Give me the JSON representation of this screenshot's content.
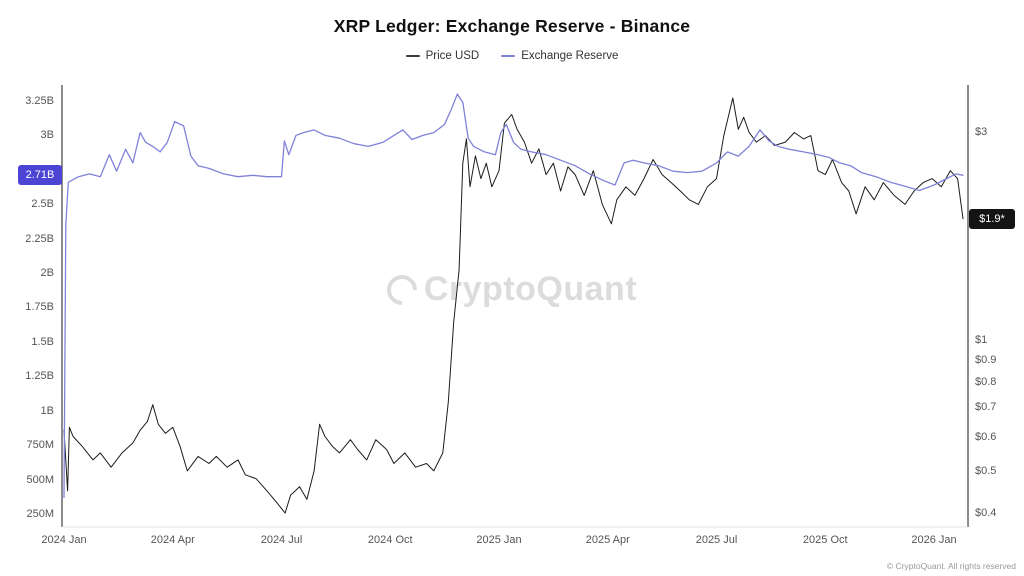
{
  "title": "XRP Ledger: Exchange Reserve - Binance",
  "legend": {
    "items": [
      {
        "label": "Price USD",
        "color": "#3a3a3a"
      },
      {
        "label": "Exchange Reserve",
        "color": "#8082d9"
      }
    ]
  },
  "watermark": {
    "text": "CryptoQuant"
  },
  "footer": {
    "text": "© CryptoQuant. All rights reserved"
  },
  "badges": {
    "left": {
      "label": "2.71B",
      "value": 2.71,
      "color": "#4b44d4"
    },
    "right": {
      "label": "$1.9*",
      "value": 1.9,
      "color": "#141414"
    }
  },
  "chart_data": {
    "type": "line",
    "title": "XRP Ledger: Exchange Reserve - Binance",
    "x_unit": "months_since_2024_01",
    "x_ticks": [
      {
        "m": 0,
        "label": "2024 Jan"
      },
      {
        "m": 3,
        "label": "2024 Apr"
      },
      {
        "m": 6,
        "label": "2024 Jul"
      },
      {
        "m": 9,
        "label": "2024 Oct"
      },
      {
        "m": 12,
        "label": "2025 Jan"
      },
      {
        "m": 15,
        "label": "2025 Apr"
      },
      {
        "m": 18,
        "label": "2025 Jul"
      },
      {
        "m": 21,
        "label": "2025 Oct"
      },
      {
        "m": 24,
        "label": "2026 Jan"
      }
    ],
    "left_axis": {
      "scale": "linear",
      "unit": "XRP (B = billions, M = millions)",
      "range": [
        0.15,
        3.37
      ],
      "ticks": [
        {
          "v": 3.25,
          "label": "3.25B"
        },
        {
          "v": 3.0,
          "label": "3B"
        },
        {
          "v": 2.5,
          "label": "2.5B"
        },
        {
          "v": 2.25,
          "label": "2.25B"
        },
        {
          "v": 2.0,
          "label": "2B"
        },
        {
          "v": 1.75,
          "label": "1.75B"
        },
        {
          "v": 1.5,
          "label": "1.5B"
        },
        {
          "v": 1.25,
          "label": "1.25B"
        },
        {
          "v": 1.0,
          "label": "1B"
        },
        {
          "v": 0.75,
          "label": "750M"
        },
        {
          "v": 0.5,
          "label": "500M"
        },
        {
          "v": 0.25,
          "label": "250M"
        }
      ]
    },
    "right_axis": {
      "scale": "log",
      "unit": "USD",
      "range": [
        0.37,
        3.8
      ],
      "ticks": [
        {
          "v": 3.0,
          "label": "$3"
        },
        {
          "v": 1.0,
          "label": "$1"
        },
        {
          "v": 0.9,
          "label": "$0.9"
        },
        {
          "v": 0.8,
          "label": "$0.8"
        },
        {
          "v": 0.7,
          "label": "$0.7"
        },
        {
          "v": 0.6,
          "label": "$0.6"
        },
        {
          "v": 0.5,
          "label": "$0.5"
        },
        {
          "v": 0.4,
          "label": "$0.4"
        }
      ]
    },
    "current_values": {
      "exchange_reserve": "2.71B",
      "price_usd": "$1.9"
    },
    "series": [
      {
        "name": "Price USD",
        "axis": "right",
        "color": "#1c1c1c",
        "width": 1,
        "x": [
          0.0,
          0.1,
          0.15,
          0.25,
          0.5,
          0.8,
          1.0,
          1.3,
          1.6,
          1.9,
          2.1,
          2.3,
          2.45,
          2.6,
          2.8,
          3.0,
          3.2,
          3.4,
          3.7,
          4.0,
          4.2,
          4.5,
          4.8,
          5.0,
          5.3,
          5.6,
          5.9,
          6.1,
          6.25,
          6.5,
          6.7,
          6.9,
          7.05,
          7.2,
          7.4,
          7.6,
          7.9,
          8.1,
          8.35,
          8.6,
          8.9,
          9.1,
          9.4,
          9.7,
          10.0,
          10.2,
          10.45,
          10.6,
          10.75,
          10.9,
          11.0,
          11.1,
          11.2,
          11.35,
          11.5,
          11.65,
          11.8,
          12.0,
          12.15,
          12.35,
          12.5,
          12.7,
          12.9,
          13.1,
          13.3,
          13.5,
          13.7,
          13.9,
          14.1,
          14.35,
          14.6,
          14.85,
          15.1,
          15.25,
          15.5,
          15.75,
          16.0,
          16.25,
          16.5,
          16.75,
          17.0,
          17.25,
          17.5,
          17.75,
          18.0,
          18.2,
          18.45,
          18.6,
          18.75,
          18.9,
          19.1,
          19.35,
          19.6,
          19.9,
          20.15,
          20.4,
          20.6,
          20.8,
          21.0,
          21.2,
          21.45,
          21.65,
          21.85,
          22.1,
          22.35,
          22.6,
          22.9,
          23.2,
          23.45,
          23.7,
          23.95,
          24.2,
          24.45,
          24.65,
          24.8
        ],
        "y": [
          0.62,
          0.45,
          0.63,
          0.6,
          0.57,
          0.53,
          0.55,
          0.51,
          0.55,
          0.58,
          0.62,
          0.65,
          0.71,
          0.64,
          0.61,
          0.63,
          0.57,
          0.5,
          0.54,
          0.52,
          0.54,
          0.51,
          0.53,
          0.49,
          0.48,
          0.45,
          0.42,
          0.4,
          0.44,
          0.46,
          0.43,
          0.5,
          0.64,
          0.6,
          0.57,
          0.55,
          0.59,
          0.56,
          0.53,
          0.59,
          0.56,
          0.52,
          0.55,
          0.51,
          0.52,
          0.5,
          0.55,
          0.72,
          1.1,
          1.45,
          2.55,
          2.9,
          2.25,
          2.65,
          2.35,
          2.55,
          2.25,
          2.45,
          3.15,
          3.3,
          3.05,
          2.85,
          2.55,
          2.75,
          2.4,
          2.55,
          2.2,
          2.5,
          2.4,
          2.15,
          2.45,
          2.05,
          1.85,
          2.1,
          2.25,
          2.15,
          2.35,
          2.6,
          2.4,
          2.3,
          2.2,
          2.1,
          2.05,
          2.25,
          2.35,
          2.95,
          3.6,
          3.05,
          3.25,
          3.0,
          2.85,
          2.95,
          2.8,
          2.85,
          3.0,
          2.9,
          2.95,
          2.45,
          2.4,
          2.6,
          2.3,
          2.2,
          1.95,
          2.25,
          2.1,
          2.3,
          2.15,
          2.05,
          2.2,
          2.3,
          2.35,
          2.25,
          2.45,
          2.35,
          1.9
        ]
      },
      {
        "name": "Exchange Reserve",
        "axis": "left",
        "color": "#8082d9",
        "width": 1.3,
        "x": [
          0.0,
          0.05,
          0.12,
          0.4,
          0.7,
          1.0,
          1.25,
          1.45,
          1.7,
          1.9,
          2.1,
          2.25,
          2.45,
          2.65,
          2.85,
          3.05,
          3.3,
          3.5,
          3.7,
          4.0,
          4.4,
          4.8,
          5.2,
          5.6,
          6.0,
          6.08,
          6.2,
          6.4,
          6.6,
          6.9,
          7.2,
          7.6,
          8.0,
          8.4,
          8.8,
          9.1,
          9.35,
          9.6,
          9.9,
          10.2,
          10.5,
          10.7,
          10.85,
          11.0,
          11.15,
          11.3,
          11.6,
          11.9,
          12.05,
          12.2,
          12.4,
          12.6,
          12.9,
          13.3,
          13.7,
          14.1,
          14.5,
          14.9,
          15.2,
          15.45,
          15.7,
          16.0,
          16.4,
          16.8,
          17.2,
          17.6,
          18.0,
          18.3,
          18.6,
          18.9,
          19.2,
          19.45,
          19.7,
          20.0,
          20.4,
          20.8,
          21.1,
          21.4,
          21.7,
          22.0,
          22.4,
          22.8,
          23.2,
          23.6,
          24.0,
          24.3,
          24.6,
          24.8
        ],
        "y": [
          0.37,
          2.35,
          2.66,
          2.7,
          2.72,
          2.7,
          2.86,
          2.74,
          2.9,
          2.8,
          3.02,
          2.95,
          2.92,
          2.88,
          2.95,
          3.1,
          3.07,
          2.85,
          2.78,
          2.76,
          2.72,
          2.7,
          2.71,
          2.7,
          2.7,
          2.96,
          2.86,
          3.0,
          3.02,
          3.04,
          3.0,
          2.98,
          2.94,
          2.92,
          2.95,
          3.0,
          3.04,
          2.97,
          3.0,
          3.02,
          3.08,
          3.2,
          3.3,
          3.24,
          2.98,
          2.92,
          2.88,
          2.86,
          3.02,
          3.08,
          2.95,
          2.9,
          2.88,
          2.86,
          2.82,
          2.78,
          2.72,
          2.67,
          2.64,
          2.8,
          2.82,
          2.8,
          2.78,
          2.74,
          2.73,
          2.74,
          2.8,
          2.88,
          2.85,
          2.92,
          3.04,
          2.96,
          2.92,
          2.9,
          2.88,
          2.86,
          2.84,
          2.8,
          2.78,
          2.73,
          2.7,
          2.66,
          2.63,
          2.6,
          2.64,
          2.68,
          2.72,
          2.71
        ]
      }
    ]
  }
}
